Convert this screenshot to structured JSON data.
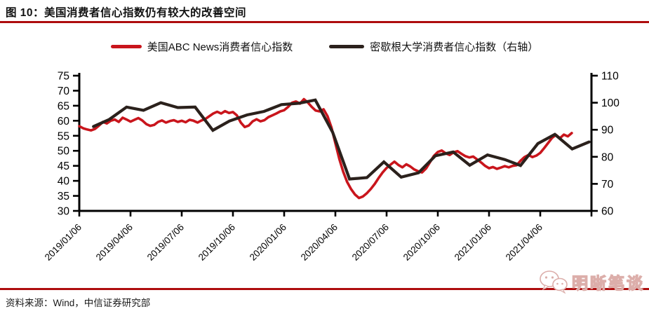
{
  "title": "图 10：美国消费者信心指数仍有较大的改善空间",
  "source": "资料来源：Wind，中信证券研究部",
  "watermark": {
    "text": "明晰笔谈",
    "icon": "wechat-icon"
  },
  "colors": {
    "rule_red": "#ae0d0e",
    "abc_red": "#c9151c",
    "umich_black": "#2b211c",
    "axis_black": "#000000",
    "watermark_pink": "#dcaeaa"
  },
  "chart_data": {
    "type": "line",
    "title": "",
    "grid": false,
    "legend_position": "top",
    "x_tick_labels": [
      "2019/01/06",
      "2019/04/06",
      "2019/07/06",
      "2019/10/06",
      "2020/01/06",
      "2020/04/06",
      "2020/07/06",
      "2020/10/06",
      "2021/01/06",
      "2021/04/06"
    ],
    "x_tick_weeks": [
      0,
      13,
      26,
      39,
      52,
      65,
      78,
      91,
      104,
      117
    ],
    "x_domain_weeks": [
      0,
      130
    ],
    "left_axis": {
      "min": 30,
      "max": 75,
      "ticks": [
        75,
        70,
        65,
        60,
        55,
        50,
        45,
        40,
        35,
        30
      ]
    },
    "right_axis": {
      "min": 60,
      "max": 110,
      "ticks": [
        110,
        100,
        90,
        80,
        70,
        60
      ]
    },
    "series": [
      {
        "name": "美国ABC News消费者信心指数",
        "axis": "left",
        "color": "#c9151c",
        "line_width": 3.6,
        "x_start_week": 0,
        "x_step_weeks": 1,
        "values": [
          58.2,
          57.5,
          57.1,
          56.8,
          57.3,
          58.4,
          59.6,
          59.1,
          60.0,
          60.4,
          59.6,
          61.0,
          60.4,
          59.7,
          60.3,
          60.9,
          60.1,
          58.9,
          58.3,
          58.6,
          59.6,
          60.1,
          59.4,
          59.9,
          60.2,
          59.6,
          60.0,
          59.5,
          60.3,
          60.0,
          59.4,
          60.1,
          60.6,
          61.5,
          62.4,
          63.0,
          62.4,
          63.2,
          62.6,
          62.9,
          61.8,
          59.4,
          57.9,
          58.4,
          59.8,
          60.5,
          59.8,
          60.2,
          61.2,
          61.8,
          62.4,
          63.1,
          63.5,
          64.6,
          66.0,
          66.4,
          65.7,
          67.2,
          66.1,
          64.6,
          63.4,
          63.1,
          63.8,
          61.5,
          57.8,
          52.5,
          47.3,
          43.0,
          39.6,
          37.2,
          35.4,
          34.3,
          34.8,
          35.9,
          37.3,
          39.0,
          41.0,
          42.8,
          44.3,
          45.4,
          46.4,
          45.3,
          44.5,
          45.5,
          44.8,
          43.8,
          43.2,
          42.8,
          44.1,
          46.2,
          48.3,
          49.6,
          50.1,
          49.2,
          48.6,
          49.5,
          49.9,
          49.0,
          48.2,
          47.8,
          48.1,
          47.1,
          46.1,
          45.0,
          44.2,
          44.6,
          44.0,
          44.4,
          44.9,
          44.5,
          45.0,
          45.2,
          46.7,
          47.9,
          48.6,
          47.9,
          48.4,
          49.3,
          50.9,
          52.6,
          54.3,
          55.3,
          54.2,
          55.4,
          54.8,
          55.9
        ]
      },
      {
        "name": "密歇根大学消费者信心指数（右轴）",
        "axis": "right",
        "color": "#2b211c",
        "line_width": 4.2,
        "x_weeks": [
          3.6,
          7.6,
          12.0,
          16.3,
          20.7,
          25.0,
          29.4,
          33.9,
          38.1,
          42.6,
          46.9,
          51.3,
          55.7,
          59.9,
          64.3,
          68.6,
          73.0,
          77.3,
          81.7,
          86.1,
          90.4,
          94.9,
          99.1,
          103.6,
          108.0,
          112.0,
          116.4,
          120.7,
          125.1,
          129.4
        ],
        "values": [
          91.2,
          93.8,
          98.4,
          97.2,
          100.0,
          98.2,
          98.4,
          89.8,
          93.2,
          95.5,
          96.8,
          99.3,
          99.8,
          101.0,
          89.1,
          71.8,
          72.3,
          78.1,
          72.5,
          74.1,
          80.4,
          81.8,
          76.9,
          80.7,
          79.0,
          76.8,
          84.9,
          88.3,
          82.9,
          85.5
        ]
      }
    ]
  }
}
